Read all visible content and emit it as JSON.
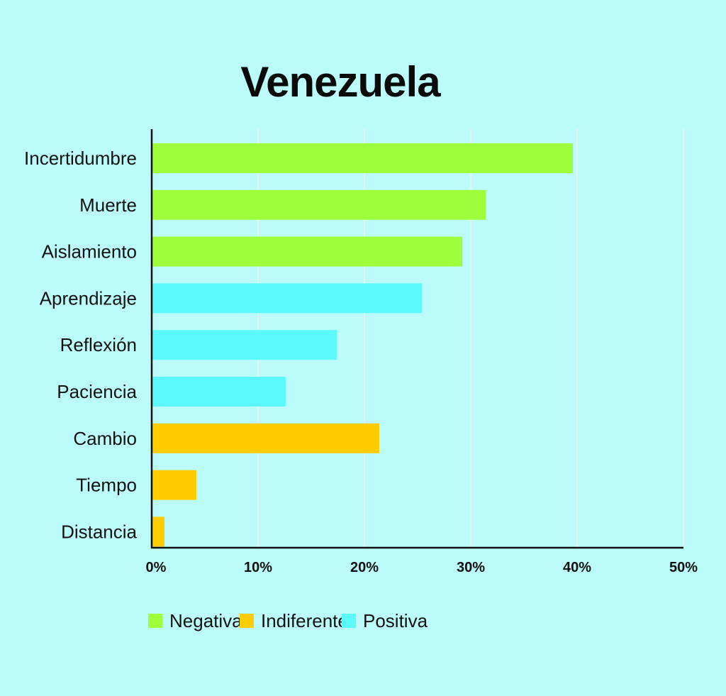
{
  "chart_data": {
    "type": "bar",
    "orientation": "horizontal",
    "title": "Venezuela",
    "categories": [
      "Incertidumbre",
      "Muerte",
      "Aislamiento",
      "Aprendizaje",
      "Reflexión",
      "Paciencia",
      "Cambio",
      "Tiempo",
      "Distancia"
    ],
    "values": [
      39.6,
      31.4,
      29.2,
      25.4,
      17.4,
      12.6,
      21.4,
      4.2,
      1.2
    ],
    "groups": [
      "Negativa",
      "Negativa",
      "Negativa",
      "Positiva",
      "Positiva",
      "Positiva",
      "Indiferente",
      "Indiferente",
      "Indiferente"
    ],
    "x_ticks": [
      "0%",
      "10%",
      "20%",
      "30%",
      "40%",
      "50%"
    ],
    "xlim": [
      0,
      50
    ],
    "unit": "%",
    "grid": true,
    "legend": {
      "placement": "bottom-left",
      "entries": [
        {
          "name": "Negativa",
          "color": "#9dff3b"
        },
        {
          "name": "Indiferente",
          "color": "#ffcc00"
        },
        {
          "name": "Positiva",
          "color": "#5cf9fd"
        }
      ]
    }
  },
  "colors": {
    "background": "#bbfcfa",
    "gridline": "#e4f2f2",
    "axis": "#111111"
  }
}
